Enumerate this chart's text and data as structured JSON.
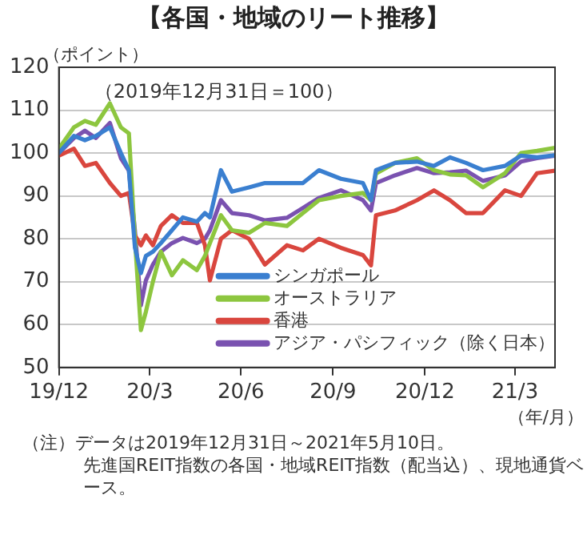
{
  "chart_data": {
    "type": "line",
    "title": "【各国・地域のリート推移】",
    "ylabel": "（ポイント）",
    "xlabel": "（年/月）",
    "annotations": [
      "（2019年12月31日＝100）",
      "（注）データは2019年12月31日～2021年5月10日。",
      "先進国REIT指数の各国・地域REIT指数（配当込）、現地通貨ベース。"
    ],
    "x": [
      "2019-12-31",
      "2020-01-15",
      "2020-01-26",
      "2020-02-06",
      "2020-02-20",
      "2020-03-02",
      "2020-03-10",
      "2020-03-16",
      "2020-03-22",
      "2020-03-27",
      "2020-04-03",
      "2020-04-11",
      "2020-04-22",
      "2020-05-03",
      "2020-05-17",
      "2020-05-25",
      "2020-05-30",
      "2020-06-10",
      "2020-06-21",
      "2020-07-08",
      "2020-07-24",
      "2020-08-15",
      "2020-08-31",
      "2020-09-16",
      "2020-10-08",
      "2020-10-30",
      "2020-11-07",
      "2020-11-12",
      "2020-12-01",
      "2020-12-23",
      "2021-01-09",
      "2021-01-25",
      "2021-02-10",
      "2021-02-27",
      "2021-03-21",
      "2021-04-06",
      "2021-04-22",
      "2021-05-10"
    ],
    "series": [
      {
        "name": "シンガポール",
        "color": "#3a7fd0",
        "values": [
          100,
          104,
          103,
          104,
          106,
          100,
          96,
          78,
          72,
          76,
          77,
          79,
          82,
          85,
          84,
          86,
          85,
          96,
          91,
          92,
          93,
          93,
          93,
          96,
          94,
          93,
          89,
          96,
          97.7,
          98,
          97,
          99,
          97.7,
          96,
          97,
          99.4,
          99,
          99.5
        ]
      },
      {
        "name": "オーストラリア",
        "color": "#8dc63f",
        "values": [
          101,
          106,
          107.5,
          106.6,
          111.6,
          106,
          104.6,
          80,
          58.7,
          63,
          70,
          77,
          71.5,
          75,
          72.7,
          76,
          79,
          85.5,
          82,
          81.4,
          83.7,
          83,
          86,
          89,
          90,
          90.7,
          89,
          95.2,
          97.7,
          98.8,
          96,
          95,
          94.8,
          92,
          95.3,
          100,
          100.5,
          101.2
        ]
      },
      {
        "name": "香港",
        "color": "#d9463e",
        "values": [
          99.4,
          101,
          97,
          97.7,
          93,
          90,
          90.7,
          80.8,
          78.5,
          80.8,
          78.5,
          83,
          85.5,
          83.7,
          83.7,
          78.5,
          70.3,
          80,
          82,
          80,
          74,
          78.5,
          77.3,
          80,
          77.9,
          76.2,
          73.8,
          85.5,
          86.6,
          89,
          91.3,
          89,
          86,
          86,
          91.3,
          90,
          95.3,
          95.9
        ]
      },
      {
        "name": "アジア・パシフィック（除く日本）",
        "color": "#7a52b0",
        "values": [
          100,
          103.5,
          105.2,
          103.5,
          107,
          98.8,
          95.9,
          82,
          64.5,
          70.3,
          74,
          77,
          79,
          80.2,
          79,
          80,
          82,
          89,
          86,
          85.5,
          84.3,
          84.9,
          87.2,
          89.5,
          91.3,
          89,
          86.6,
          93,
          94.8,
          96.5,
          95.3,
          95.5,
          95.9,
          93.5,
          94.8,
          98,
          98.8,
          99.4
        ]
      }
    ],
    "xlim": [
      "2019-12-31",
      "2021-05-10"
    ],
    "xticks": [
      {
        "value": "2019-12-31",
        "label": "19/12"
      },
      {
        "value": "2020-03-31",
        "label": "20/3"
      },
      {
        "value": "2020-06-30",
        "label": "20/6"
      },
      {
        "value": "2020-09-30",
        "label": "20/9"
      },
      {
        "value": "2020-12-31",
        "label": "20/12"
      },
      {
        "value": "2021-03-31",
        "label": "21/3"
      }
    ],
    "ylim": [
      50,
      120
    ],
    "yticks": [
      50,
      60,
      70,
      80,
      90,
      100,
      110,
      120
    ],
    "grid": "y",
    "legend": "bottom right",
    "marker": "none",
    "line_style": "solid"
  }
}
